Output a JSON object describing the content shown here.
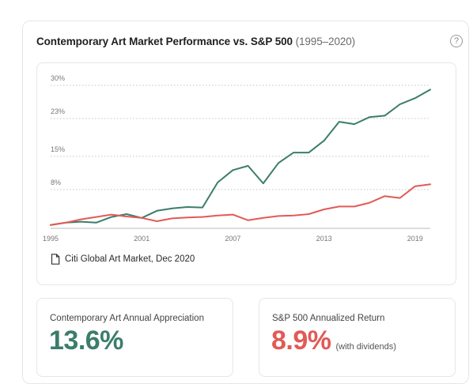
{
  "header": {
    "title": "Contemporary Art Market Performance vs. S&P 500",
    "range": "(1995–2020)",
    "help_icon": "question-circle-icon"
  },
  "source": {
    "icon": "document-icon",
    "text": "Citi Global Art Market, Dec 2020"
  },
  "stats": {
    "art": {
      "label": "Contemporary Art Annual Appreciation",
      "value": "13.6%",
      "color": "#3b7d6b"
    },
    "sp": {
      "label": "S&P 500 Annualized Return",
      "value": "8.9%",
      "note": "(with dividends)",
      "color": "#e25a55"
    }
  },
  "chart_data": {
    "type": "line",
    "title": "Contemporary Art Market Performance vs. S&P 500",
    "x": [
      1995,
      1996,
      1997,
      1998,
      1999,
      2000,
      2001,
      2002,
      2003,
      2004,
      2005,
      2006,
      2007,
      2008,
      2009,
      2010,
      2011,
      2012,
      2013,
      2014,
      2015,
      2016,
      2017,
      2018,
      2019,
      2020
    ],
    "xticks": [
      "1995",
      "2001",
      "2007",
      "2013",
      "2019"
    ],
    "xtick_values": [
      1995,
      2001,
      2007,
      2013,
      2019
    ],
    "yticks": [
      "8%",
      "15%",
      "23%",
      "30%"
    ],
    "ytick_values": [
      8,
      15,
      23,
      30
    ],
    "ylim": [
      0.3,
      30
    ],
    "xlim": [
      1995,
      2020
    ],
    "grid": true,
    "series": [
      {
        "color": "#3b7d6b",
        "values": [
          0.5,
          1.0,
          1.2,
          1.0,
          2.2,
          2.8,
          2.0,
          3.5,
          4.0,
          4.3,
          4.2,
          9.5,
          12.1,
          13.0,
          9.3,
          13.6,
          15.8,
          15.8,
          18.3,
          22.3,
          21.8,
          23.3,
          23.6,
          26.0,
          27.3,
          29.1
        ]
      },
      {
        "color": "#e25a55",
        "values": [
          0.5,
          1.0,
          1.7,
          2.2,
          2.7,
          2.3,
          2.0,
          1.3,
          1.9,
          2.1,
          2.2,
          2.5,
          2.7,
          1.5,
          2.0,
          2.4,
          2.5,
          2.8,
          3.8,
          4.4,
          4.4,
          5.2,
          6.6,
          6.2,
          8.7,
          9.1
        ]
      }
    ]
  }
}
